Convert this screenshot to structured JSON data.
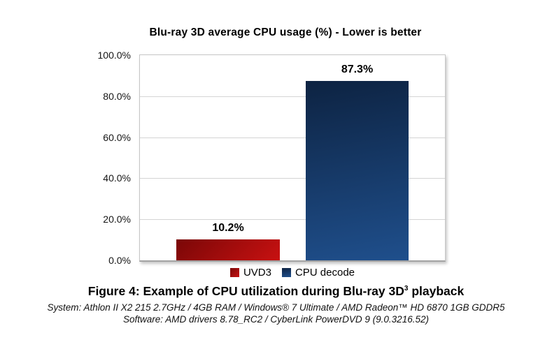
{
  "chart_data": {
    "type": "bar",
    "title": "Blu-ray 3D average CPU usage (%) - Lower is better",
    "categories": [
      "UVD3",
      "CPU decode"
    ],
    "values": [
      10.2,
      87.3
    ],
    "value_labels": [
      "10.2%",
      "87.3%"
    ],
    "xlabel": "",
    "ylabel": "",
    "ylim": [
      0,
      100
    ],
    "yticks": [
      "100.0%",
      "80.0%",
      "60.0%",
      "40.0%",
      "20.0%",
      "0.0%"
    ],
    "grid": true,
    "legend_position": "bottom",
    "colors": {
      "uvd3_gradient_dark": "#7a0707",
      "uvd3_gradient_bright": "#c81111",
      "cpu_decode_gradient_dark": "#0d2342",
      "cpu_decode_gradient_bright": "#1f4f8c",
      "gridline": "#d4d4d4",
      "plot_border": "#c6c6c6"
    }
  },
  "caption": {
    "prefix": "Figure 4: Example of CPU utilization during Blu-ray 3D",
    "superscript": "3",
    "suffix": " playback"
  },
  "footnotes": {
    "system": "System: Athlon II X2 215 2.7GHz / 4GB RAM / Windows® 7 Ultimate / AMD Radeon™ HD 6870 1GB GDDR5",
    "software": "Software: AMD drivers 8.78_RC2 / CyberLink PowerDVD 9 (9.0.3216.52)"
  }
}
